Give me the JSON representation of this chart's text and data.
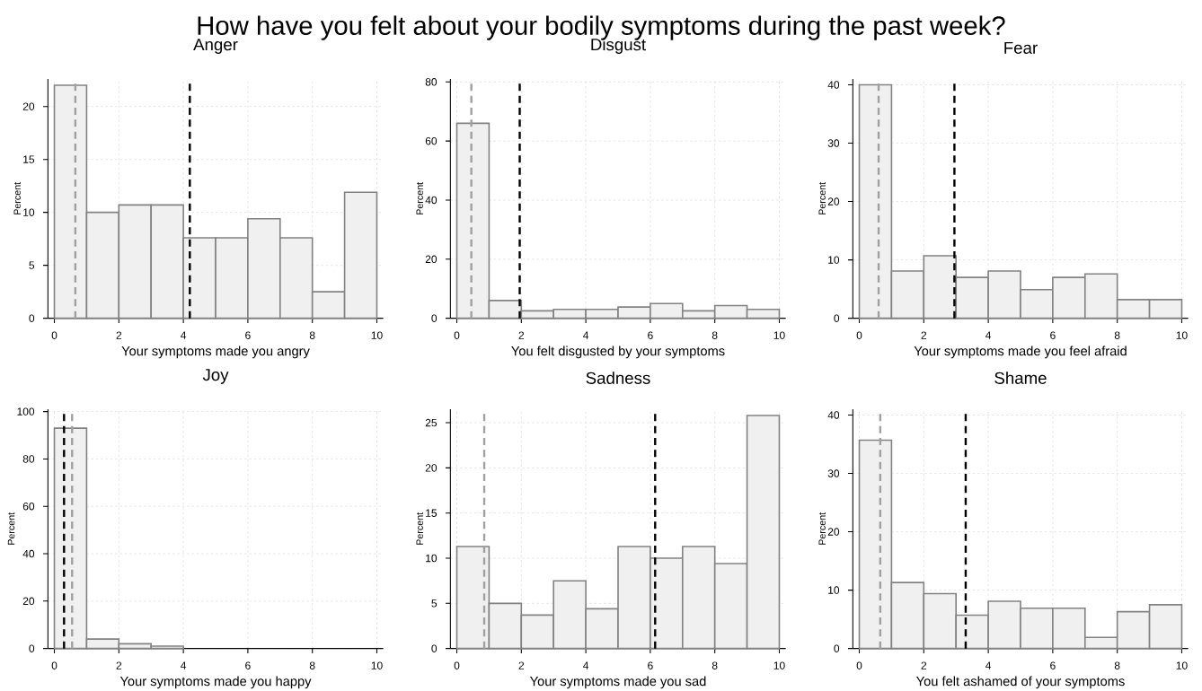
{
  "chart_data": [
    {
      "type": "histogram",
      "title": "Anger",
      "xlabel": "Your symptoms made you angry",
      "ylabel": "Percent",
      "annotations": [
        "How have you felt about your bodily symptoms during the past week?"
      ],
      "color": "#f0f0f0",
      "bins": [
        0,
        1,
        2,
        3,
        4,
        5,
        6,
        7,
        8,
        9,
        10
      ],
      "values": [
        22,
        10,
        10.7,
        10.7,
        7.6,
        7.6,
        9.4,
        7.6,
        2.5,
        11.9
      ],
      "xlim": [
        -0.2,
        10.2
      ],
      "ylim": [
        0,
        22.6
      ],
      "xticks": [
        0,
        2,
        4,
        6,
        8,
        10
      ],
      "yticks": [
        0,
        5,
        10,
        15,
        20
      ],
      "grid": true,
      "ref_lines": [
        {
          "axis": "x",
          "value": 0.65,
          "color": "#a0a0a0",
          "line_style": "dashed"
        },
        {
          "axis": "x",
          "value": 4.2,
          "color": "#000000",
          "line_style": "dashed"
        }
      ]
    },
    {
      "type": "histogram",
      "title": "Disgust",
      "xlabel": "You felt disgusted by your symptoms",
      "ylabel": "Percent",
      "color": "#f0f0f0",
      "bins": [
        0,
        1,
        2,
        3,
        4,
        5,
        6,
        7,
        8,
        9,
        10
      ],
      "values": [
        66,
        6,
        2.5,
        3,
        3,
        3.8,
        5,
        2.5,
        4.3,
        3
      ],
      "xlim": [
        -0.2,
        10.2
      ],
      "ylim": [
        0,
        81
      ],
      "xticks": [
        0,
        2,
        4,
        6,
        8,
        10
      ],
      "yticks": [
        0,
        20,
        40,
        60,
        80
      ],
      "grid": true,
      "ref_lines": [
        {
          "axis": "x",
          "value": 0.45,
          "color": "#a0a0a0",
          "line_style": "dashed"
        },
        {
          "axis": "x",
          "value": 1.95,
          "color": "#000000",
          "line_style": "dashed"
        }
      ]
    },
    {
      "type": "histogram",
      "title": "Fear",
      "xlabel": "Your symptoms made you feel afraid",
      "ylabel": "Percent",
      "color": "#f0f0f0",
      "bins": [
        0,
        1,
        2,
        3,
        4,
        5,
        6,
        7,
        8,
        9,
        10
      ],
      "values": [
        40,
        8.1,
        10.7,
        7,
        8.1,
        4.9,
        7,
        7.6,
        3.2,
        3.2
      ],
      "xlim": [
        -0.2,
        10.2
      ],
      "ylim": [
        0,
        41
      ],
      "xticks": [
        0,
        2,
        4,
        6,
        8,
        10
      ],
      "yticks": [
        0,
        10,
        20,
        30,
        40
      ],
      "grid": true,
      "ref_lines": [
        {
          "axis": "x",
          "value": 0.6,
          "color": "#a0a0a0",
          "line_style": "dashed"
        },
        {
          "axis": "x",
          "value": 2.95,
          "color": "#000000",
          "line_style": "dashed"
        }
      ]
    },
    {
      "type": "histogram",
      "title": "Joy",
      "xlabel": "Your symptoms made you happy",
      "ylabel": "Percent",
      "color": "#f0f0f0",
      "bins": [
        0,
        1,
        2,
        3,
        4
      ],
      "values": [
        93,
        4,
        2,
        1
      ],
      "xlim": [
        -0.2,
        10.2
      ],
      "ylim": [
        0,
        101
      ],
      "xticks": [
        0,
        2,
        4,
        6,
        8,
        10
      ],
      "yticks": [
        0,
        20,
        40,
        60,
        80,
        100
      ],
      "grid": true,
      "ref_lines": [
        {
          "axis": "x",
          "value": 0.55,
          "color": "#a0a0a0",
          "line_style": "dashed"
        },
        {
          "axis": "x",
          "value": 0.3,
          "color": "#000000",
          "line_style": "dashed"
        }
      ]
    },
    {
      "type": "histogram",
      "title": "Sadness",
      "xlabel": "Your symptoms made you sad",
      "ylabel": "Percent",
      "color": "#f0f0f0",
      "bins": [
        0,
        1,
        2,
        3,
        4,
        5,
        6,
        7,
        8,
        9,
        10
      ],
      "values": [
        11.3,
        5,
        3.7,
        7.5,
        4.4,
        11.3,
        10,
        11.3,
        9.4,
        25.8
      ],
      "xlim": [
        -0.2,
        10.2
      ],
      "ylim": [
        0,
        26.5
      ],
      "xticks": [
        0,
        2,
        4,
        6,
        8,
        10
      ],
      "yticks": [
        0,
        5,
        10,
        15,
        20,
        25
      ],
      "grid": true,
      "ref_lines": [
        {
          "axis": "x",
          "value": 0.85,
          "color": "#a0a0a0",
          "line_style": "dashed"
        },
        {
          "axis": "x",
          "value": 6.15,
          "color": "#000000",
          "line_style": "dashed"
        }
      ]
    },
    {
      "type": "histogram",
      "title": "Shame",
      "xlabel": "You felt ashamed of your symptoms",
      "ylabel": "Percent",
      "color": "#f0f0f0",
      "bins": [
        0,
        1,
        2,
        3,
        4,
        5,
        6,
        7,
        8,
        9,
        10
      ],
      "values": [
        35.7,
        11.3,
        9.4,
        5.7,
        8.1,
        6.9,
        6.9,
        1.9,
        6.3,
        7.5
      ],
      "xlim": [
        -0.2,
        10.2
      ],
      "ylim": [
        0,
        41
      ],
      "xticks": [
        0,
        2,
        4,
        6,
        8,
        10
      ],
      "yticks": [
        0,
        10,
        20,
        30,
        40
      ],
      "grid": true,
      "ref_lines": [
        {
          "axis": "x",
          "value": 0.65,
          "color": "#a0a0a0",
          "line_style": "dashed"
        },
        {
          "axis": "x",
          "value": 3.3,
          "color": "#000000",
          "line_style": "dashed"
        }
      ]
    }
  ]
}
